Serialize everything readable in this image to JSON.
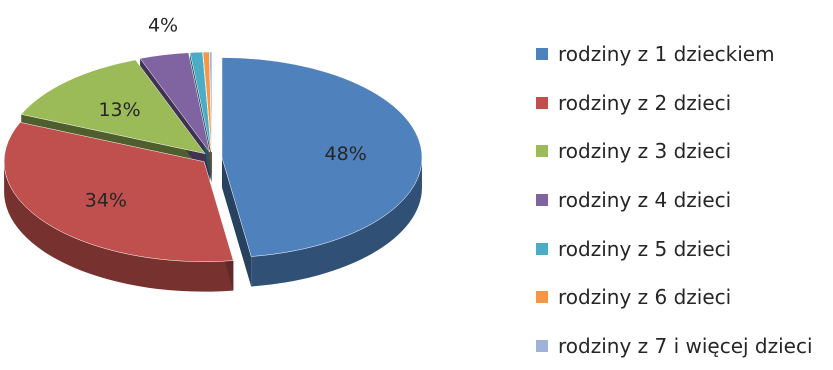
{
  "chart_data": {
    "type": "pie",
    "title": "",
    "categories": [
      "rodziny z 1 dzieckiem",
      "rodziny z 2 dzieci",
      "rodziny z 3 dzieci",
      "rodziny z 4 dzieci",
      "rodziny z 5 dzieci",
      "rodziny z 6 dzieci",
      "rodziny z 7 i więcej dzieci"
    ],
    "values": [
      48,
      34,
      13,
      4,
      1,
      0.5,
      0.2
    ],
    "data_labels": [
      "48%",
      "34%",
      "13%",
      "4%",
      "",
      "",
      ""
    ],
    "colors": [
      "#4F81BD",
      "#C0504D",
      "#9BBB59",
      "#8064A2",
      "#4BACC6",
      "#F79646",
      "#9EB3D6"
    ],
    "legend_position": "right",
    "exploded": true,
    "style": "3d"
  }
}
